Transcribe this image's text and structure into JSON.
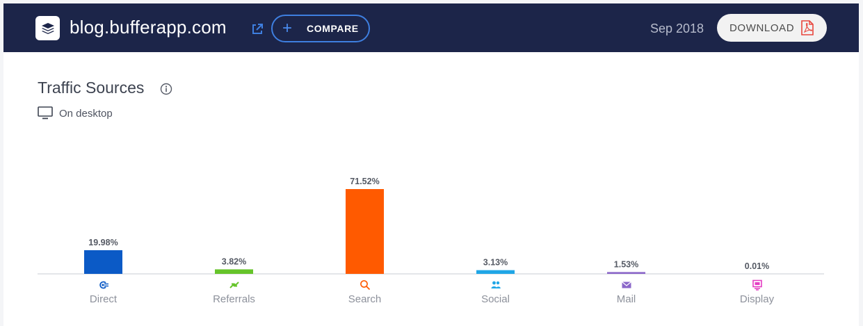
{
  "header": {
    "site_name": "blog.bufferapp.com",
    "compare_label": "COMPARE",
    "date": "Sep 2018",
    "download_label": "DOWNLOAD"
  },
  "card": {
    "title": "Traffic Sources",
    "device": "On desktop"
  },
  "colors": {
    "header_bg": "#1c2549",
    "accent_blue": "#3e7fe0",
    "pdf_red": "#e8453c"
  },
  "chart_data": {
    "type": "bar",
    "categories": [
      "Direct",
      "Referrals",
      "Search",
      "Social",
      "Mail",
      "Display"
    ],
    "values": [
      19.98,
      3.82,
      71.52,
      3.13,
      1.53,
      0.01
    ],
    "value_labels": [
      "19.98%",
      "3.82%",
      "71.52%",
      "3.13%",
      "1.53%",
      "0.01%"
    ],
    "colors": [
      "#0b5ac6",
      "#66c42a",
      "#ff5a00",
      "#20a6e6",
      "#8b67c9",
      "#e43ec3"
    ],
    "icons": [
      "direct-icon",
      "referrals-icon",
      "search-icon",
      "social-icon",
      "mail-icon",
      "display-icon"
    ],
    "ylim": [
      0,
      100
    ],
    "grid": false,
    "unit": "%"
  }
}
